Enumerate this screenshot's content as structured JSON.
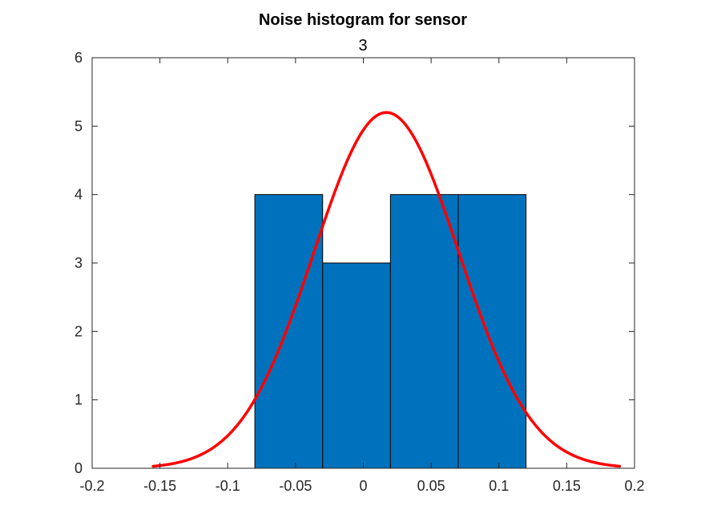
{
  "chart_data": {
    "type": "bar",
    "title": "Noise histogram for sensor",
    "subtitle": "3",
    "xlabel": "",
    "ylabel": "",
    "xlim": [
      -0.2,
      0.2
    ],
    "ylim": [
      0,
      6
    ],
    "xticks": [
      -0.2,
      -0.15,
      -0.1,
      -0.05,
      0,
      0.05,
      0.1,
      0.15,
      0.2
    ],
    "xtick_labels": [
      "-0.2",
      "-0.15",
      "-0.1",
      "-0.05",
      "0",
      "0.05",
      "0.1",
      "0.15",
      "0.2"
    ],
    "yticks": [
      0,
      1,
      2,
      3,
      4,
      5,
      6
    ],
    "ytick_labels": [
      "0",
      "1",
      "2",
      "3",
      "4",
      "5",
      "6"
    ],
    "grid": false,
    "bins": [
      {
        "x0": -0.08,
        "x1": -0.03,
        "count": 4
      },
      {
        "x0": -0.03,
        "x1": 0.02,
        "count": 3
      },
      {
        "x0": 0.02,
        "x1": 0.07,
        "count": 4
      },
      {
        "x0": 0.07,
        "x1": 0.12,
        "count": 4
      }
    ],
    "fit_curve": {
      "type": "normal",
      "peak": 5.2,
      "mean": 0.017,
      "sigma": 0.0535,
      "x_range": [
        -0.155,
        0.189
      ]
    },
    "colors": {
      "bar_fill": "#0072BD",
      "bar_edge": "#000000",
      "curve": "#FF0000",
      "axis": "#262626"
    }
  }
}
